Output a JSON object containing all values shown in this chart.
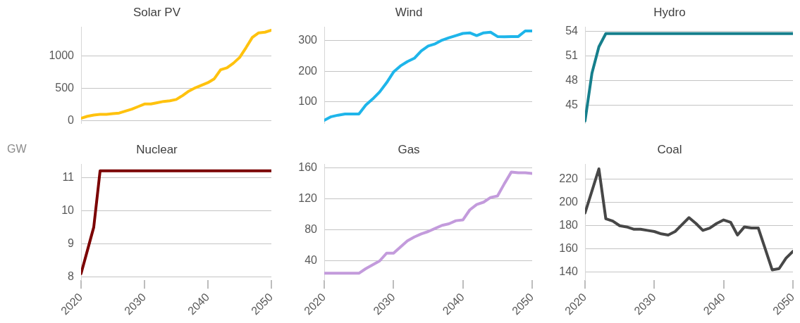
{
  "chart_data": [
    {
      "type": "line",
      "title": "Solar PV",
      "x": [
        2020,
        2021,
        2022,
        2023,
        2024,
        2025,
        2026,
        2027,
        2028,
        2029,
        2030,
        2031,
        2032,
        2033,
        2034,
        2035,
        2036,
        2037,
        2038,
        2039,
        2040,
        2041,
        2042,
        2043,
        2044,
        2045,
        2046,
        2047,
        2048,
        2049,
        2050
      ],
      "values": [
        40,
        70,
        90,
        100,
        100,
        110,
        120,
        150,
        180,
        220,
        260,
        260,
        280,
        300,
        310,
        330,
        390,
        460,
        510,
        550,
        590,
        650,
        790,
        820,
        890,
        980,
        1130,
        1290,
        1360,
        1370,
        1400
      ],
      "color": "#ffc20e",
      "xlim": [
        2020,
        2050
      ],
      "xticks": [
        2020,
        2030,
        2040,
        2050
      ],
      "ylim": [
        -40,
        1450
      ],
      "yticks": [
        0,
        500,
        1000
      ],
      "grid": "y",
      "tick_labels": "y"
    },
    {
      "type": "line",
      "title": "Wind",
      "x": [
        2020,
        2021,
        2022,
        2023,
        2024,
        2025,
        2026,
        2027,
        2028,
        2029,
        2030,
        2031,
        2032,
        2033,
        2034,
        2035,
        2036,
        2037,
        2038,
        2039,
        2040,
        2041,
        2042,
        2043,
        2044,
        2045,
        2046,
        2047,
        2048,
        2049,
        2050
      ],
      "values": [
        40,
        52,
        57,
        61,
        61,
        61,
        90,
        110,
        133,
        163,
        198,
        218,
        232,
        243,
        267,
        283,
        290,
        302,
        310,
        317,
        324,
        326,
        317,
        326,
        328,
        314,
        313,
        314,
        314,
        332,
        332
      ],
      "color": "#1eb5ea",
      "xlim": [
        2020,
        2050
      ],
      "xticks": [
        2020,
        2030,
        2040,
        2050
      ],
      "ylim": [
        30,
        345
      ],
      "yticks": [
        100,
        200,
        300
      ],
      "grid": "y",
      "tick_labels": "y"
    },
    {
      "type": "line",
      "title": "Hydro",
      "x": [
        2020,
        2021,
        2022,
        2023,
        2024,
        2025,
        2026,
        2027,
        2028,
        2029,
        2030,
        2031,
        2032,
        2033,
        2034,
        2035,
        2036,
        2037,
        2038,
        2039,
        2040,
        2041,
        2042,
        2043,
        2044,
        2045,
        2046,
        2047,
        2048,
        2049,
        2050
      ],
      "values": [
        43.1,
        48.9,
        52.1,
        53.7,
        53.7,
        53.7,
        53.7,
        53.7,
        53.7,
        53.7,
        53.7,
        53.7,
        53.7,
        53.7,
        53.7,
        53.7,
        53.7,
        53.7,
        53.7,
        53.7,
        53.7,
        53.7,
        53.7,
        53.7,
        53.7,
        53.7,
        53.7,
        53.7,
        53.7,
        53.7,
        53.7
      ],
      "color": "#167f8c",
      "xlim": [
        2020,
        2050
      ],
      "xticks": [
        2020,
        2030,
        2040,
        2050
      ],
      "ylim": [
        42.8,
        54.5
      ],
      "yticks": [
        45,
        48,
        51,
        54
      ],
      "grid": "y",
      "tick_labels": "y"
    },
    {
      "type": "line",
      "title": "Nuclear",
      "ylabel": "GW",
      "x": [
        2020,
        2021,
        2022,
        2023,
        2024,
        2025,
        2026,
        2027,
        2028,
        2029,
        2030,
        2031,
        2032,
        2033,
        2034,
        2035,
        2036,
        2037,
        2038,
        2039,
        2040,
        2041,
        2042,
        2043,
        2044,
        2045,
        2046,
        2047,
        2048,
        2049,
        2050
      ],
      "values": [
        8.1,
        8.8,
        9.5,
        11.2,
        11.2,
        11.2,
        11.2,
        11.2,
        11.2,
        11.2,
        11.2,
        11.2,
        11.2,
        11.2,
        11.2,
        11.2,
        11.2,
        11.2,
        11.2,
        11.2,
        11.2,
        11.2,
        11.2,
        11.2,
        11.2,
        11.2,
        11.2,
        11.2,
        11.2,
        11.2,
        11.2
      ],
      "color": "#7b0000",
      "xlim": [
        2020,
        2050
      ],
      "xticks": [
        2020,
        2030,
        2040,
        2050
      ],
      "ylim": [
        7.9,
        11.4
      ],
      "yticks": [
        8,
        9,
        10,
        11
      ],
      "grid": "y"
    },
    {
      "type": "line",
      "title": "Gas",
      "x": [
        2020,
        2021,
        2022,
        2023,
        2024,
        2025,
        2026,
        2027,
        2028,
        2029,
        2030,
        2031,
        2032,
        2033,
        2034,
        2035,
        2036,
        2037,
        2038,
        2039,
        2040,
        2041,
        2042,
        2043,
        2044,
        2045,
        2046,
        2047,
        2048,
        2049,
        2050
      ],
      "values": [
        24,
        24,
        24,
        24,
        24,
        24,
        30,
        35,
        40,
        50,
        50,
        58,
        66,
        71,
        75,
        78,
        82,
        86,
        88,
        92,
        93,
        106,
        113,
        116,
        122,
        124,
        140,
        155,
        154,
        154,
        153
      ],
      "color": "#c39bdc",
      "xlim": [
        2020,
        2050
      ],
      "xticks": [
        2020,
        2030,
        2040,
        2050
      ],
      "ylim": [
        15,
        165
      ],
      "yticks": [
        40,
        80,
        120,
        160
      ],
      "grid": "y"
    },
    {
      "type": "line",
      "title": "Coal",
      "x": [
        2020,
        2021,
        2022,
        2023,
        2024,
        2025,
        2026,
        2027,
        2028,
        2029,
        2030,
        2031,
        2032,
        2033,
        2034,
        2035,
        2036,
        2037,
        2038,
        2039,
        2040,
        2041,
        2042,
        2043,
        2044,
        2045,
        2046,
        2047,
        2048,
        2049,
        2050
      ],
      "values": [
        191,
        210,
        229,
        186,
        184,
        180,
        179,
        177,
        177,
        176,
        175,
        173,
        172,
        175,
        181,
        187,
        182,
        176,
        178,
        182,
        185,
        183,
        172,
        179,
        178,
        178,
        160,
        142,
        143,
        152,
        158
      ],
      "color": "#474747",
      "xlim": [
        2020,
        2050
      ],
      "xticks": [
        2020,
        2030,
        2040,
        2050
      ],
      "ylim": [
        133,
        233
      ],
      "yticks": [
        140,
        160,
        180,
        200,
        220
      ],
      "grid": "y"
    }
  ]
}
